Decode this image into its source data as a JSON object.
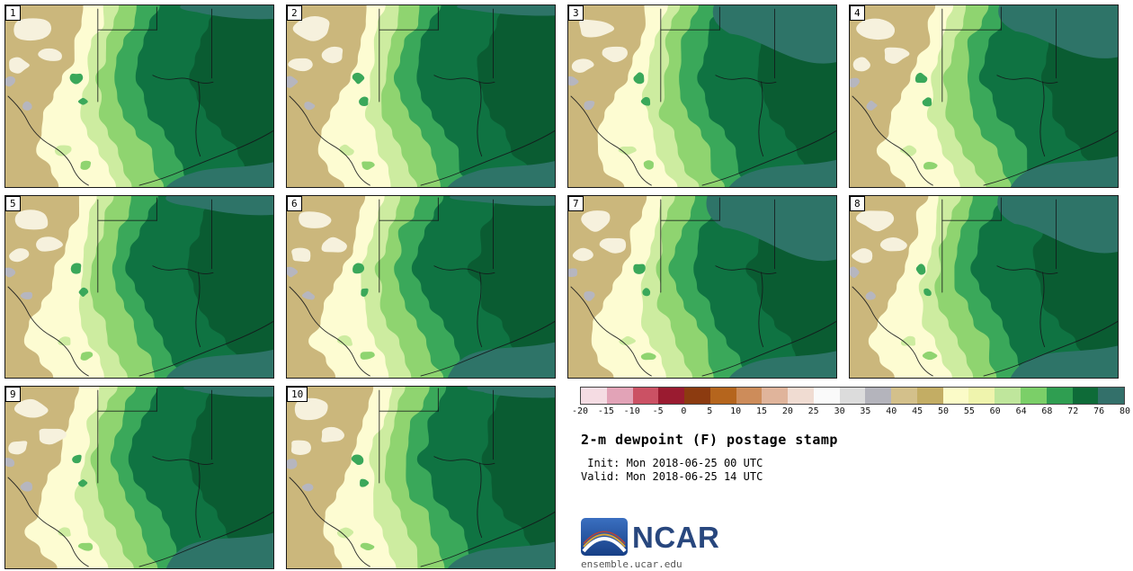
{
  "title": "2-m dewpoint (F) postage stamp",
  "init_label": " Init: Mon 2018-06-25 00 UTC",
  "valid_label": "Valid: Mon 2018-06-25 14 UTC",
  "logo_text": "NCAR",
  "footer_url": "ensemble.ucar.edu",
  "panels": [
    {
      "label": "1"
    },
    {
      "label": "2"
    },
    {
      "label": "3"
    },
    {
      "label": "4"
    },
    {
      "label": "5"
    },
    {
      "label": "6"
    },
    {
      "label": "7"
    },
    {
      "label": "8"
    },
    {
      "label": "9"
    },
    {
      "label": "10"
    }
  ],
  "colorbar": {
    "ticks": [
      "-20",
      "-15",
      "-10",
      "-5",
      "0",
      "5",
      "10",
      "15",
      "20",
      "25",
      "30",
      "35",
      "40",
      "45",
      "50",
      "55",
      "60",
      "64",
      "68",
      "72",
      "76",
      "80"
    ],
    "segment_colors": [
      "#f5dce3",
      "#e2a3b7",
      "#cb5164",
      "#9a1b30",
      "#8c3b10",
      "#b5651d",
      "#cd8c5a",
      "#e0b49b",
      "#f0dcd2",
      "#fafafa",
      "#dcdcdc",
      "#b4b4bc",
      "#d3c08b",
      "#c3ad64",
      "#fbfbc8",
      "#eff4ad",
      "#bfe69c",
      "#7bcf68",
      "#2f9e51",
      "#0e6b38",
      "#33706a"
    ]
  },
  "map_palette": {
    "base_dark": "#0a5c32",
    "dark_green": "#0f7342",
    "medium_green": "#3aa85a",
    "light_green": "#8fd470",
    "pale_green": "#cdeca0",
    "cream": "#fdfcd2",
    "tan": "#cbb77c",
    "white_patch": "#f6f1dd",
    "gray_patch": "#b6b6bf",
    "teal": "#2e7468",
    "border": "#14161a"
  }
}
